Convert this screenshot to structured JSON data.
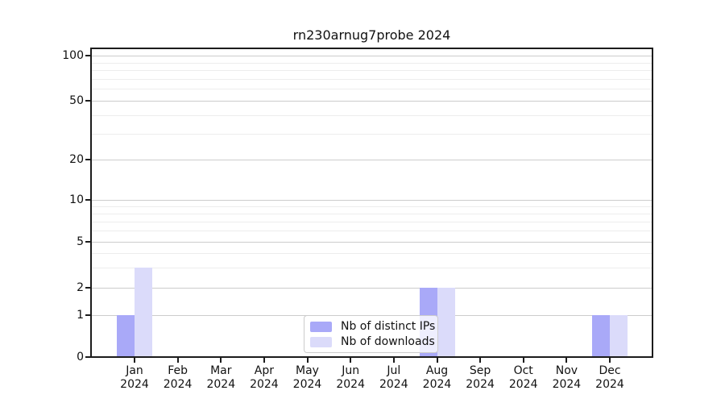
{
  "chart_data": {
    "type": "bar",
    "title": "rn230arnug7probe 2024",
    "categories": [
      "Jan",
      "Feb",
      "Mar",
      "Apr",
      "May",
      "Jun",
      "Jul",
      "Aug",
      "Sep",
      "Oct",
      "Nov",
      "Dec"
    ],
    "category_year": "2024",
    "series": [
      {
        "name": "Nb of distinct IPs",
        "color": "#a9a9f8",
        "values": [
          1,
          0,
          0,
          0,
          0,
          0,
          0,
          2,
          0,
          0,
          0,
          1
        ]
      },
      {
        "name": "Nb of downloads",
        "color": "#dbdbfa",
        "values": [
          3,
          0,
          0,
          0,
          0,
          0,
          0,
          2,
          0,
          0,
          0,
          1
        ]
      }
    ],
    "y_ticks": [
      0,
      1,
      2,
      5,
      10,
      20,
      50,
      100
    ],
    "y_minor_ticks": [
      3,
      4,
      6,
      7,
      8,
      9,
      30,
      40,
      60,
      70,
      80,
      90
    ],
    "ylim": [
      0,
      120
    ],
    "yscale": "symlog",
    "grid": true,
    "legend_position": "lower center",
    "xlabel": "",
    "ylabel": ""
  }
}
